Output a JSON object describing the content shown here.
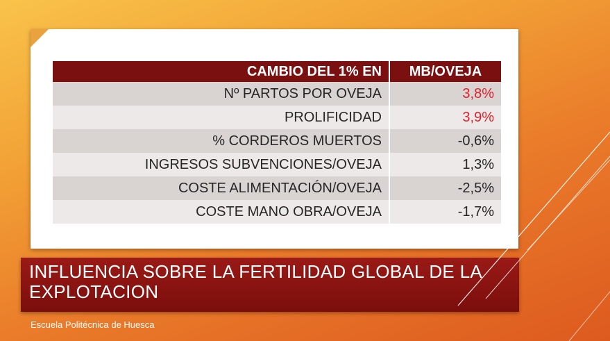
{
  "table": {
    "header": {
      "label": "CAMBIO DEL 1% EN",
      "value": "MB/OVEJA"
    },
    "rows": [
      {
        "label": "Nº PARTOS POR OVEJA",
        "value": "3,8%"
      },
      {
        "label": "PROLIFICIDAD",
        "value": "3,9%"
      },
      {
        "label": "% CORDEROS MUERTOS",
        "value": "-0,6%"
      },
      {
        "label": "INGRESOS SUBVENCIONES/OVEJA",
        "value": "1,3%"
      },
      {
        "label": "COSTE ALIMENTACIÓN/OVEJA",
        "value": "-2,5%"
      },
      {
        "label": "COSTE MANO OBRA/OVEJA",
        "value": "-1,7%"
      }
    ]
  },
  "title": "INFLUENCIA SOBRE LA FERTILIDAD GLOBAL DE LA EXPLOTACION",
  "footer": "Escuela Politécnica de Huesca",
  "colors": {
    "header_bg": "#7a1010",
    "highlight_value": "#e0202a",
    "title_bar": "#8a1412"
  }
}
